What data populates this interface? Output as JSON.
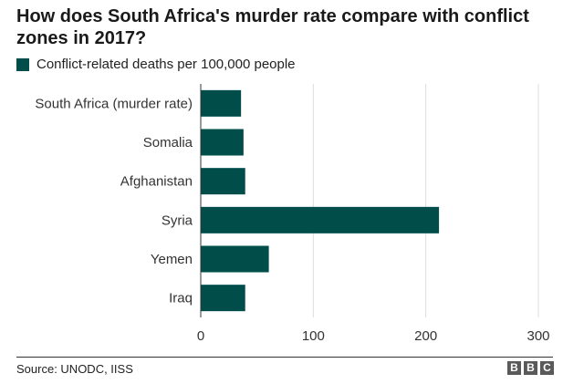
{
  "title": "How does South Africa's murder rate compare with conflict zones in 2017?",
  "legend": {
    "label": "Conflict-related deaths per 100,000 people",
    "color": "#004d4a"
  },
  "source": "Source: UNODC, IISS",
  "logo": {
    "text": "BBC",
    "letters": [
      "B",
      "B",
      "C"
    ]
  },
  "chart_data": {
    "type": "bar",
    "orientation": "horizontal",
    "categories": [
      "South Africa (murder rate)",
      "Somalia",
      "Afghanistan",
      "Syria",
      "Yemen",
      "Iraq"
    ],
    "values": [
      35.8,
      38,
      39.5,
      211.7,
      60.5,
      39.5
    ],
    "xlim": [
      0,
      300
    ],
    "xticks": [
      0,
      100,
      200,
      300
    ],
    "grid": true,
    "legend_position": "top-left",
    "bar_color": "#004d4a"
  }
}
